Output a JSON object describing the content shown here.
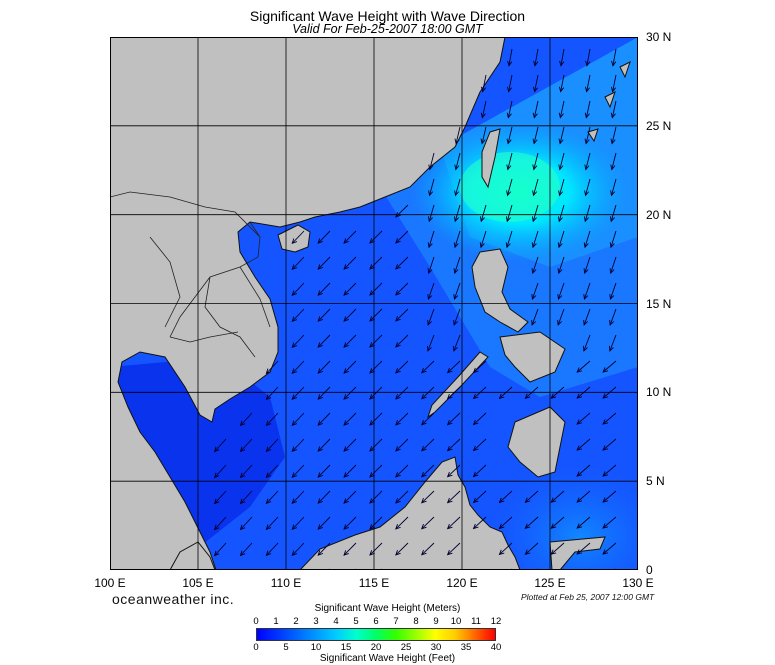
{
  "header": {
    "title": "Significant Wave Height with Wave Direction",
    "subtitle": "Valid For Feb-25-2007 18:00 GMT"
  },
  "map": {
    "lon_range": [
      100,
      130
    ],
    "lat_range": [
      0,
      30
    ],
    "lat_labels": [
      "30 N",
      "25 N",
      "20 N",
      "15 N",
      "10 N",
      "5 N",
      "0"
    ],
    "lat_values": [
      30,
      25,
      20,
      15,
      10,
      5,
      0
    ],
    "lon_labels": [
      "100 E",
      "105 E",
      "110 E",
      "115 E",
      "120 E",
      "125 E",
      "130 E"
    ],
    "lon_values": [
      100,
      105,
      110,
      115,
      120,
      125,
      130
    ],
    "gridlines": true,
    "land_color": "#c0c0c0",
    "wave_direction": "arrows pointing southwest (NE monsoon swell)",
    "peak_wave_area": "Luzon Strait / east of Taiwan"
  },
  "footer": {
    "brand": "oceanweather inc.",
    "plotted": "Plotted at Feb 25, 2007 12:00 GMT"
  },
  "legend": {
    "top_title": "Significant Wave Height (Meters)",
    "bottom_title": "Significant Wave Height (Feet)",
    "meter_ticks": [
      "0",
      "1",
      "2",
      "3",
      "4",
      "5",
      "6",
      "7",
      "8",
      "9",
      "10",
      "11",
      "12"
    ],
    "feet_ticks": [
      "0",
      "5",
      "10",
      "15",
      "20",
      "25",
      "30",
      "35",
      "40"
    ],
    "colors": [
      "#0000ff",
      "#0033ff",
      "#0066ff",
      "#0099ff",
      "#00ccff",
      "#00ffcc",
      "#00ff66",
      "#33ff00",
      "#99ff00",
      "#ffff00",
      "#ffcc00",
      "#ff6600",
      "#ff0000"
    ]
  }
}
